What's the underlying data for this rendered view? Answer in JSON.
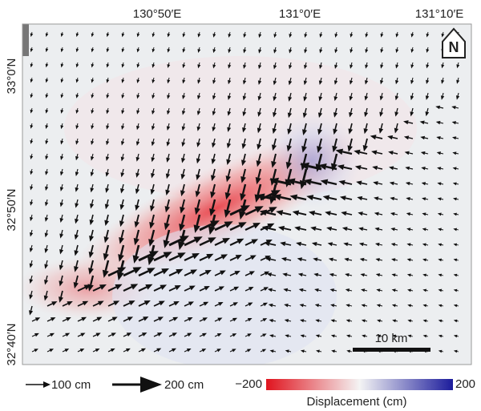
{
  "map": {
    "lon_labels": [
      "130°50′E",
      "131°0′E",
      "131°10′E"
    ],
    "lat_labels": [
      "33°0′N",
      "32°50′N",
      "32°40′N"
    ],
    "north": "N",
    "scale_bar": "10 km",
    "legend": {
      "arrows": [
        "100 cm",
        "200 cm"
      ],
      "colorbar": {
        "min": {
          "value": -200,
          "label": "−200"
        },
        "max": {
          "value": 200,
          "label": "200"
        },
        "label": "Displacement (cm)"
      }
    }
  }
}
